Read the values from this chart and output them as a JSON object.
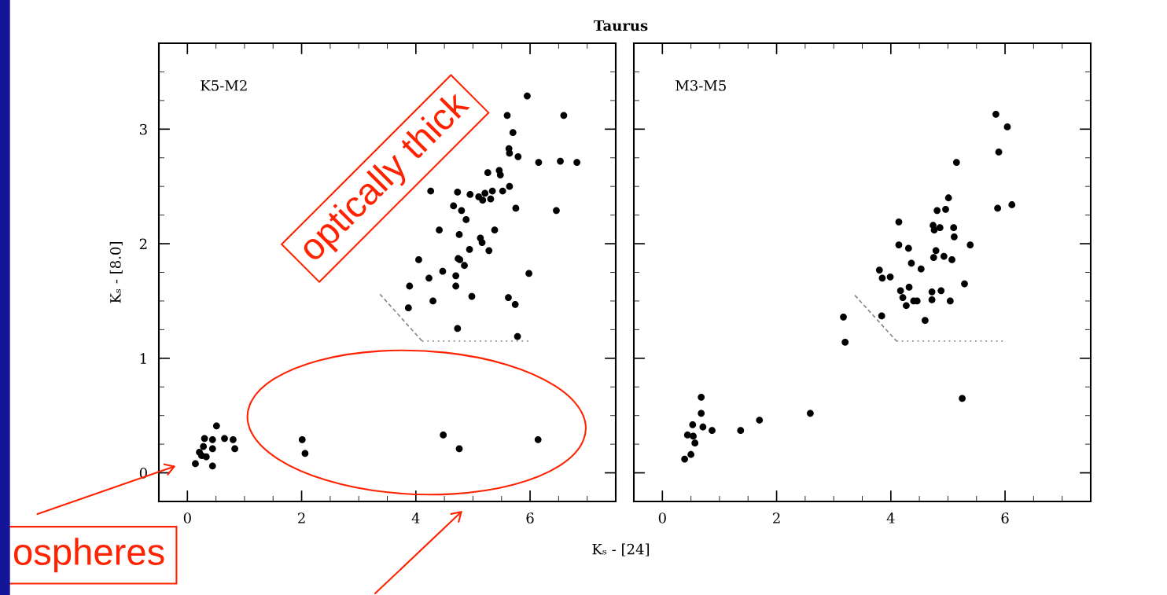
{
  "chart_data": [
    {
      "type": "scatter",
      "title": "Taurus",
      "xlabel": "Kₛ - [24]",
      "ylabel": "Kₛ - [8.0]",
      "xlim": [
        -0.5,
        7.5
      ],
      "ylim": [
        -0.25,
        3.75
      ],
      "xticks": [
        0,
        2,
        4,
        6
      ],
      "yticks": [
        0,
        1,
        2,
        3
      ],
      "grid": false,
      "legend": false,
      "marker": "circle",
      "annotations": [
        "K5-M2",
        "optically thick",
        "ospheres"
      ],
      "series": [
        {
          "color": "#000000",
          "x": [
            5.95,
            6.59,
            5.6,
            5.7,
            5.63,
            5.64,
            5.79,
            6.15,
            6.53,
            6.82,
            5.26,
            5.46,
            5.48,
            5.64,
            5.34,
            4.26,
            4.73,
            4.95,
            5.1,
            5.21,
            5.17,
            5.31,
            4.66,
            4.8,
            4.88,
            5.75,
            5.38,
            4.41,
            4.76,
            6.46,
            5.13,
            5.16,
            4.94,
            5.28,
            4.74,
            4.77,
            4.85,
            4.05,
            4.47,
            4.23,
            4.7,
            5.98,
            5.52,
            3.89,
            4.7,
            3.87,
            4.3,
            4.98,
            5.62,
            5.74,
            4.73,
            5.78,
            0.51,
            0.65,
            0.8,
            0.83,
            0.44,
            0.3,
            0.44,
            0.21,
            0.25,
            0.33,
            0.14,
            0.44,
            0.28,
            2.01,
            2.06,
            4.48,
            4.76,
            6.14
          ],
          "values": [
            3.29,
            3.12,
            3.12,
            2.97,
            2.83,
            2.79,
            2.76,
            2.71,
            2.72,
            2.71,
            2.62,
            2.64,
            2.6,
            2.5,
            2.46,
            2.46,
            2.45,
            2.43,
            2.41,
            2.44,
            2.38,
            2.39,
            2.33,
            2.29,
            2.21,
            2.31,
            2.12,
            2.12,
            2.08,
            2.29,
            2.05,
            2.01,
            1.95,
            1.94,
            1.87,
            1.86,
            1.81,
            1.86,
            1.76,
            1.7,
            1.72,
            1.74,
            2.46,
            1.63,
            1.63,
            1.44,
            1.5,
            1.54,
            1.53,
            1.47,
            1.26,
            1.19,
            0.41,
            0.3,
            0.29,
            0.21,
            0.29,
            0.3,
            0.21,
            0.18,
            0.15,
            0.14,
            0.08,
            0.06,
            0.23,
            0.29,
            0.17,
            0.33,
            0.21,
            0.29
          ]
        },
        {
          "type": "line",
          "color": "#888888",
          "line_style": "dashed",
          "marker": "none",
          "x": [
            3.37,
            4.11
          ],
          "values": [
            1.56,
            1.15
          ]
        },
        {
          "type": "line",
          "color": "#888888",
          "line_style": "dotted",
          "marker": "none",
          "x": [
            4.11,
            6.0
          ],
          "values": [
            1.15,
            1.15
          ]
        }
      ]
    },
    {
      "type": "scatter",
      "xlim": [
        -0.5,
        7.5
      ],
      "ylim": [
        -0.25,
        3.75
      ],
      "xticks": [
        0,
        2,
        4,
        6
      ],
      "yticks": [
        0,
        1,
        2,
        3
      ],
      "tick_labels": "x",
      "grid": false,
      "legend": false,
      "marker": "circle",
      "annotations": [
        "M3-M5"
      ],
      "series": [
        {
          "color": "#000000",
          "x": [
            5.84,
            6.04,
            5.89,
            5.15,
            5.87,
            6.12,
            5.01,
            4.81,
            4.96,
            4.14,
            4.74,
            4.86,
            4.76,
            5.1,
            5.11,
            4.14,
            4.31,
            5.39,
            4.79,
            4.75,
            4.93,
            5.07,
            4.36,
            4.53,
            3.8,
            3.85,
            3.99,
            4.17,
            4.32,
            4.21,
            4.27,
            4.4,
            4.46,
            4.72,
            4.88,
            4.72,
            5.04,
            5.29,
            4.6,
            3.84,
            3.17,
            3.2,
            5.25,
            0.68,
            0.68,
            0.53,
            0.71,
            0.87,
            0.44,
            0.54,
            0.57,
            0.5,
            0.39,
            1.37,
            1.7,
            2.59
          ],
          "values": [
            3.13,
            3.02,
            2.8,
            2.71,
            2.31,
            2.34,
            2.4,
            2.29,
            2.3,
            2.19,
            2.16,
            2.14,
            2.12,
            2.14,
            2.06,
            1.99,
            1.96,
            1.99,
            1.94,
            1.88,
            1.89,
            1.86,
            1.83,
            1.78,
            1.77,
            1.7,
            1.71,
            1.59,
            1.62,
            1.53,
            1.46,
            1.5,
            1.5,
            1.58,
            1.59,
            1.51,
            1.5,
            1.65,
            1.33,
            1.37,
            1.36,
            1.14,
            0.65,
            0.66,
            0.52,
            0.42,
            0.4,
            0.37,
            0.33,
            0.32,
            0.26,
            0.16,
            0.12,
            0.37,
            0.46,
            0.52
          ]
        },
        {
          "type": "line",
          "color": "#888888",
          "line_style": "dashed",
          "marker": "none",
          "x": [
            3.37,
            4.1
          ],
          "values": [
            1.55,
            1.15
          ]
        },
        {
          "type": "line",
          "color": "#888888",
          "line_style": "dotted",
          "marker": "none",
          "x": [
            4.1,
            6.0
          ],
          "values": [
            1.15,
            1.15
          ]
        }
      ]
    }
  ]
}
